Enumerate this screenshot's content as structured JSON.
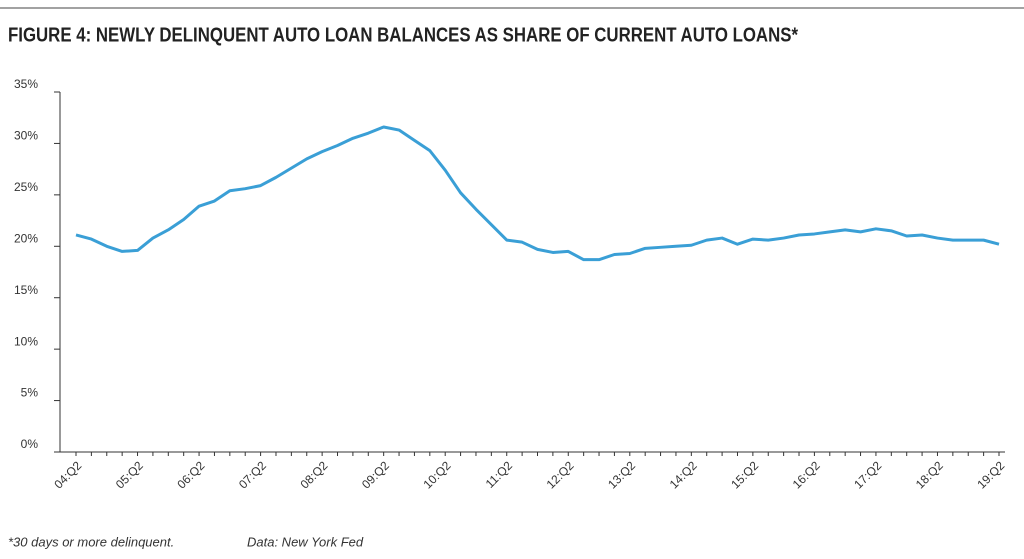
{
  "chart_data": {
    "type": "line",
    "title": "FIGURE 4: NEWLY DELINQUENT AUTO LOAN BALANCES AS SHARE OF CURRENT AUTO LOANS*",
    "footnote": "*30 days or more delinquent.",
    "source": "Data: New York Fed",
    "categories": [
      "04:Q2",
      null,
      null,
      null,
      "05:Q2",
      null,
      null,
      null,
      "06:Q2",
      null,
      null,
      null,
      "07:Q2",
      null,
      null,
      null,
      "08:Q2",
      null,
      null,
      null,
      "09:Q2",
      null,
      null,
      null,
      "10:Q2",
      null,
      null,
      null,
      "11:Q2",
      null,
      null,
      null,
      "12:Q2",
      null,
      null,
      null,
      "13:Q2",
      null,
      null,
      null,
      "14:Q2",
      null,
      null,
      null,
      "15:Q2",
      null,
      null,
      null,
      "16:Q2",
      null,
      null,
      null,
      "17:Q2",
      null,
      null,
      null,
      "18:Q2",
      null,
      null,
      null,
      "19:Q2"
    ],
    "values": [
      21.1,
      20.7,
      20.0,
      19.5,
      19.6,
      20.8,
      21.6,
      22.6,
      23.9,
      24.4,
      25.4,
      25.6,
      25.9,
      26.7,
      27.6,
      28.5,
      29.2,
      29.8,
      30.5,
      31.0,
      31.6,
      31.3,
      30.3,
      29.3,
      27.4,
      25.2,
      23.6,
      22.1,
      20.6,
      20.4,
      19.7,
      19.4,
      19.5,
      18.7,
      18.7,
      19.2,
      19.3,
      19.8,
      19.9,
      20.0,
      20.1,
      20.6,
      20.8,
      20.2,
      20.7,
      20.6,
      20.8,
      21.1,
      21.2,
      21.4,
      21.6,
      21.4,
      21.7,
      21.5,
      21.0,
      21.1,
      20.8,
      20.6,
      20.6,
      20.6,
      20.2
    ],
    "color": "#3a9fd6",
    "ylim": [
      0,
      35
    ],
    "yticks": [
      {
        "value": 0,
        "label": "0%"
      },
      {
        "value": 5,
        "label": "5%"
      },
      {
        "value": 10,
        "label": "10%"
      },
      {
        "value": 15,
        "label": "15%"
      },
      {
        "value": 20,
        "label": "20%"
      },
      {
        "value": 25,
        "label": "25%"
      },
      {
        "value": 30,
        "label": "30%"
      },
      {
        "value": 35,
        "label": "35%"
      }
    ]
  }
}
